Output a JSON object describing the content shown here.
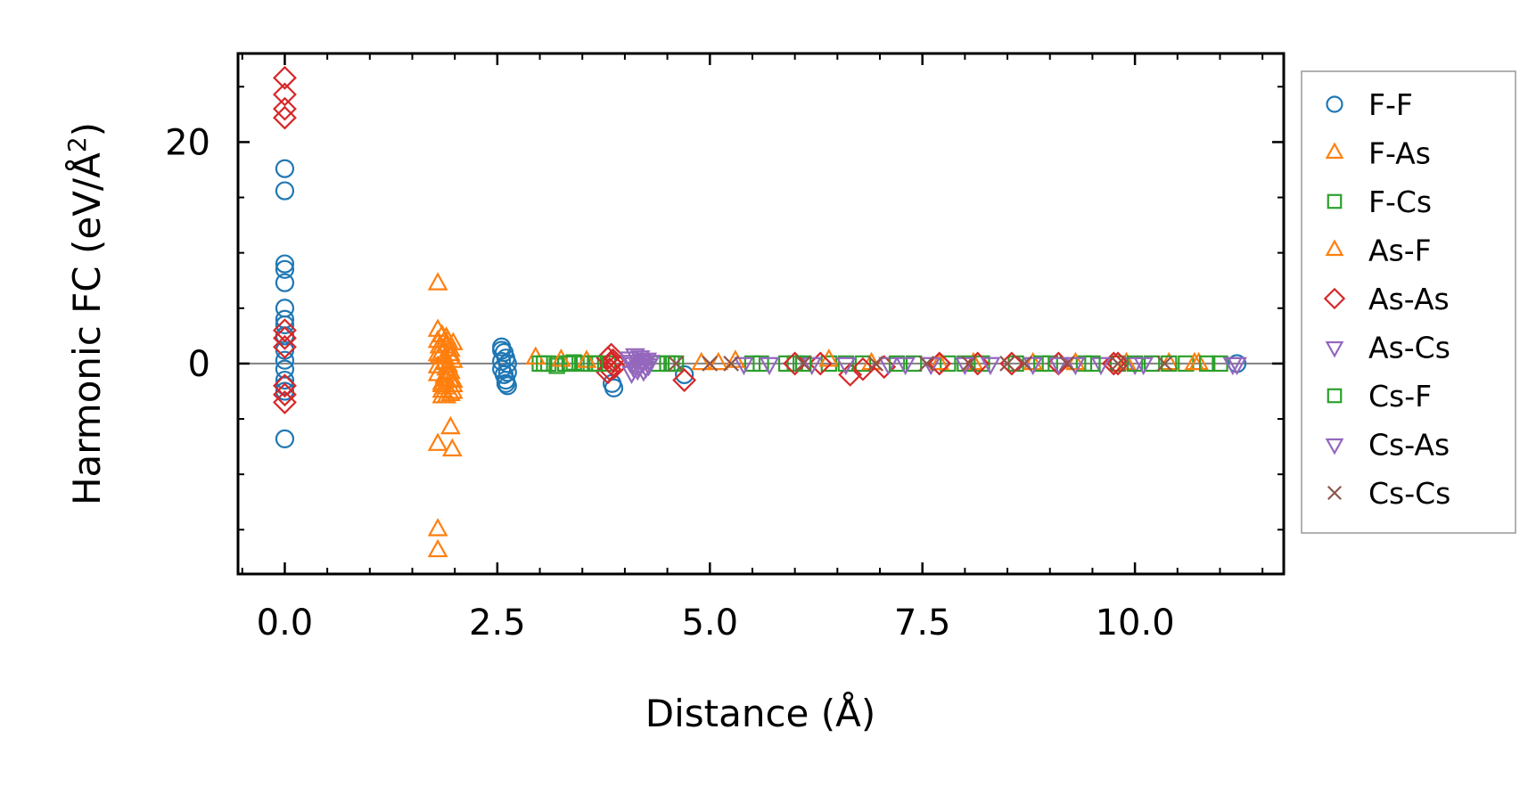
{
  "chart_data": {
    "type": "scatter",
    "title": "",
    "xlabel": "Distance (Å)",
    "ylabel_main": "Harmonic FC (eV/Å",
    "ylabel_sup": "2",
    "ylabel_close": ")",
    "xlim": [
      -0.55,
      11.75
    ],
    "ylim": [
      -19,
      28
    ],
    "xticks": [
      0.0,
      2.5,
      5.0,
      7.5,
      10.0
    ],
    "xtick_labels": [
      "0.0",
      "2.5",
      "5.0",
      "7.5",
      "10.0"
    ],
    "yticks": [
      0,
      20
    ],
    "ytick_labels": [
      "0",
      "20"
    ],
    "zero_line": 0,
    "legend_position": "outside-right",
    "series": [
      {
        "name": "F-F",
        "marker": "circle",
        "color": "#1f77b4",
        "x": [
          0,
          0,
          0,
          0,
          0,
          0,
          0,
          0,
          0,
          0,
          0,
          0,
          0,
          0,
          0,
          0,
          2.55,
          2.58,
          2.6,
          2.62,
          2.55,
          2.58,
          2.6,
          2.62,
          2.55,
          2.6,
          2.55,
          2.62,
          3.85,
          3.87,
          4.7,
          11.2
        ],
        "y": [
          17.6,
          15.6,
          9,
          8.5,
          7.3,
          5,
          4,
          3.5,
          2.5,
          1.2,
          0.3,
          -0.5,
          -1.5,
          -2.5,
          -6.8,
          -2,
          1.5,
          1,
          0.5,
          0,
          -0.5,
          -1,
          -1.5,
          -2,
          1.2,
          -1.8,
          0.2,
          -0.8,
          -1.8,
          -2.2,
          -1,
          0
        ]
      },
      {
        "name": "F-As",
        "marker": "triangle-up",
        "color": "#ff7f0e",
        "x": [
          1.8,
          1.8,
          1.8,
          1.82,
          1.85,
          1.85,
          1.88,
          1.88,
          1.9,
          1.9,
          1.92,
          1.92,
          1.95,
          1.95,
          1.95,
          1.98,
          1.98,
          1.8,
          1.85,
          1.9,
          1.95,
          1.8,
          1.85,
          1.9,
          1.95,
          1.98,
          1.82,
          1.88,
          1.92,
          1.98,
          1.95,
          1.97,
          1.8,
          1.8,
          1.8,
          1.85,
          1.85,
          1.9,
          1.95,
          1.9,
          1.8,
          1.98
        ],
        "y": [
          7.2,
          3,
          2,
          1.5,
          2.5,
          1,
          0.5,
          0,
          1.5,
          -0.5,
          2,
          -1,
          0.8,
          -1.5,
          1.2,
          -2,
          0.2,
          -0.3,
          -2.5,
          -3,
          -2.8,
          -1,
          -1.8,
          -2.2,
          -0.8,
          1.8,
          0.6,
          -1.2,
          -0.2,
          -2.6,
          -5.8,
          -7.8,
          -7.3,
          -15,
          -16.9,
          -2,
          -3,
          -1.5,
          0.5,
          2.3,
          0.8,
          -1.6
        ]
      },
      {
        "name": "F-Cs",
        "marker": "square",
        "color": "#2ca02c",
        "x": [
          3.0,
          3.1,
          3.2,
          3.3,
          3.4,
          3.5,
          3.6,
          3.7,
          3.8,
          4.4,
          4.5,
          4.6,
          5.5,
          5.9,
          6.0,
          6.4,
          6.8,
          7.4,
          7.8,
          8.2,
          8.6,
          9.0,
          9.4,
          9.8,
          10.2,
          10.6,
          11.0
        ],
        "y": [
          0,
          0,
          -0.2,
          0,
          0.1,
          0,
          0,
          0,
          0,
          0,
          0,
          0,
          0,
          0,
          0,
          0,
          0,
          0,
          0,
          0,
          0,
          0,
          0,
          0,
          0,
          0,
          0
        ]
      },
      {
        "name": "As-F",
        "marker": "triangle-up",
        "color": "#ff7f0e",
        "x": [
          2.95,
          3.25,
          3.55,
          4.9,
          5.1,
          5.3,
          6.4,
          6.9,
          7.7,
          8.1,
          8.8,
          9.3,
          9.9,
          10.4,
          10.7,
          10.75
        ],
        "y": [
          0.5,
          0.3,
          0.2,
          0,
          0,
          0.2,
          0.3,
          0,
          0,
          0,
          0,
          0,
          0,
          0,
          0,
          0
        ]
      },
      {
        "name": "As-As",
        "marker": "diamond",
        "color": "#d62728",
        "x": [
          0,
          0,
          0,
          0,
          0,
          0,
          0,
          0,
          0,
          0,
          3.8,
          3.82,
          3.84,
          3.86,
          3.88,
          3.8,
          3.84,
          4.7,
          6.0,
          6.3,
          6.65,
          6.8,
          7.05,
          7.7,
          8.15,
          8.55,
          9.1,
          9.75,
          9.8
        ],
        "y": [
          25.8,
          24.3,
          23,
          22.2,
          3,
          2.3,
          1.5,
          -2,
          -2.8,
          -3.5,
          0.5,
          -0.5,
          0,
          0.3,
          -0.3,
          -0.8,
          0.8,
          -1.5,
          0,
          0,
          -1,
          -0.5,
          -0.3,
          0,
          0,
          0,
          0,
          0,
          0
        ]
      },
      {
        "name": "As-Cs",
        "marker": "triangle-down",
        "color": "#9467bd",
        "x": [
          4.05,
          4.1,
          4.15,
          4.2,
          4.25,
          4.3,
          4.08,
          4.18,
          4.28,
          4.12,
          4.22,
          5.4,
          6.2,
          7.1,
          7.6,
          8.3,
          9.1,
          9.6,
          10.0,
          11.2
        ],
        "y": [
          0.5,
          0,
          -0.5,
          0.3,
          -0.3,
          0.2,
          -0.8,
          0.6,
          -0.1,
          0.8,
          -0.6,
          0,
          0,
          0,
          0,
          0,
          0,
          0,
          0,
          0
        ]
      },
      {
        "name": "Cs-F",
        "marker": "square",
        "color": "#2ca02c",
        "x": [
          3.05,
          3.35,
          3.65,
          4.55,
          5.6,
          6.1,
          6.6,
          7.2,
          8.0,
          8.9,
          9.5,
          10.0,
          10.4,
          10.85
        ],
        "y": [
          0,
          0,
          0,
          0,
          0,
          0,
          0,
          0,
          0,
          0,
          0,
          0,
          0,
          0
        ]
      },
      {
        "name": "Cs-As",
        "marker": "triangle-down",
        "color": "#9467bd",
        "x": [
          4.06,
          4.16,
          4.26,
          4.11,
          4.21,
          5.7,
          6.6,
          7.3,
          8.0,
          8.8,
          9.3,
          10.1,
          11.15
        ],
        "y": [
          0.2,
          -0.2,
          0.4,
          -0.4,
          0.1,
          0,
          0,
          0,
          0,
          0,
          0,
          0,
          0
        ]
      },
      {
        "name": "Cs-Cs",
        "marker": "x",
        "color": "#8c564b",
        "x": [
          4.6,
          5.0,
          5.25,
          6.1,
          6.95,
          7.55,
          8.05,
          8.5,
          8.7,
          9.2,
          9.8,
          10.35
        ],
        "y": [
          0,
          0,
          0,
          0,
          0,
          0,
          0,
          0,
          0,
          0,
          0,
          0
        ]
      }
    ]
  }
}
